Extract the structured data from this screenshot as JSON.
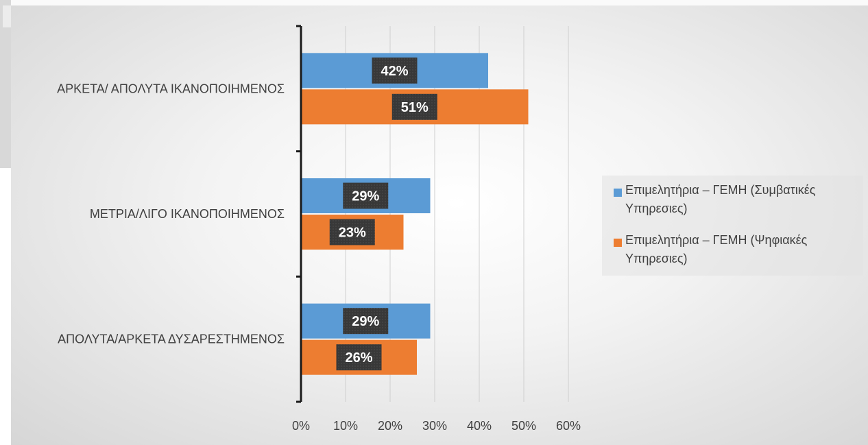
{
  "chart_data": {
    "type": "bar",
    "orientation": "horizontal",
    "categories": [
      "ΑΡΚΕΤΑ/ ΑΠΟΛΥΤΑ ΙΚΑΝΟΠΟΙΗΜΕΝΟΣ",
      "ΜΕΤΡΙΑ/ΛΙΓΟ ΙΚΑΝΟΠΟΙΗΜΕΝΟΣ",
      "ΑΠΟΛΥΤΑ/ΑΡΚΕΤΑ ΔΥΣΑΡΕΣΤΗΜΕΝΟΣ"
    ],
    "series": [
      {
        "name": "Επιμελητήρια – ΓΕΜΗ (Συμβατικές Υπηρεσιες)",
        "color": "#5b9bd5",
        "values": [
          42,
          29,
          29
        ],
        "labels": [
          "42%",
          "29%",
          "29%"
        ]
      },
      {
        "name": "Επιμελητήρια – ΓΕΜΗ (Ψηφιακές Υπηρεσιες)",
        "color": "#ed7d31",
        "values": [
          51,
          23,
          26
        ],
        "labels": [
          "51%",
          "23%",
          "26%"
        ]
      }
    ],
    "xlim": [
      0,
      60
    ],
    "xticks": [
      "0%",
      "10%",
      "20%",
      "30%",
      "40%",
      "50%",
      "60%"
    ],
    "grid": true,
    "legend_position": "right",
    "title": "",
    "xlabel": "",
    "ylabel": ""
  },
  "legend": {
    "item1_line1": "Επιμελητήρια – ΓΕΜΗ (Συμβατικές",
    "item1_line2": "Υπηρεσιες)",
    "item2_line1": "Επιμελητήρια – ΓΕΜΗ (Ψηφιακές",
    "item2_line2": "Υπηρεσιες)"
  },
  "colors": {
    "series1": "#5b9bd5",
    "series2": "#ed7d31",
    "data_label_bg": "#3a3a3a"
  }
}
